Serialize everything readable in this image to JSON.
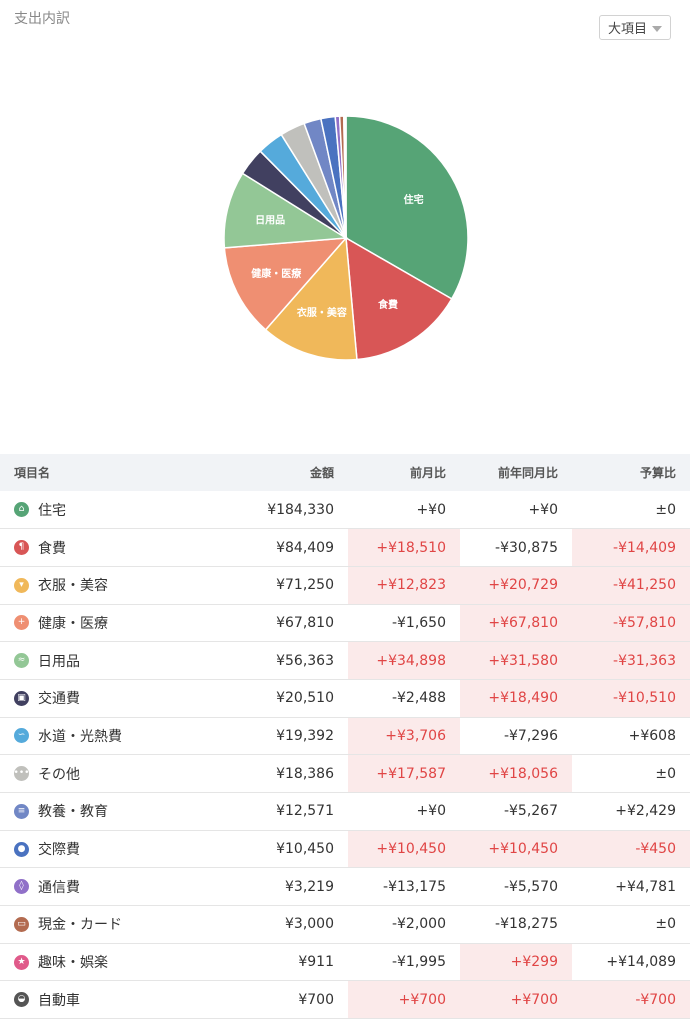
{
  "header": {
    "title": "支出内訳",
    "dropdown_selected": "大項目"
  },
  "pie": {
    "labels_shown": [
      "住宅",
      "食費",
      "衣服・美容",
      "健康・医療",
      "日用品"
    ],
    "colors": [
      "#56a476",
      "#d85656",
      "#f0b85a",
      "#ef8f72",
      "#93c796",
      "#414060",
      "#55aadb",
      "#c0c0bc",
      "#7187c5",
      "#4a72c0",
      "#9070c8",
      "#b36b50",
      "#e05a8a",
      "#555555"
    ]
  },
  "table": {
    "headers": [
      "項目名",
      "金額",
      "前月比",
      "前年同月比",
      "予算比"
    ],
    "rows": [
      {
        "name": "住宅",
        "icon": "house-icon",
        "color": "#56a476",
        "amount": "¥184,330",
        "mom": "+¥0",
        "yoy": "+¥0",
        "budget": "±0",
        "mom_neg": false,
        "yoy_neg": false,
        "budget_neg": false
      },
      {
        "name": "食費",
        "icon": "fork-knife-icon",
        "color": "#d85656",
        "amount": "¥84,409",
        "mom": "+¥18,510",
        "yoy": "-¥30,875",
        "budget": "-¥14,409",
        "mom_neg": true,
        "yoy_neg": false,
        "budget_neg": true
      },
      {
        "name": "衣服・美容",
        "icon": "shirt-icon",
        "color": "#f0b85a",
        "amount": "¥71,250",
        "mom": "+¥12,823",
        "yoy": "+¥20,729",
        "budget": "-¥41,250",
        "mom_neg": true,
        "yoy_neg": true,
        "budget_neg": true
      },
      {
        "name": "健康・医療",
        "icon": "medical-cross-icon",
        "color": "#ef8f72",
        "amount": "¥67,810",
        "mom": "-¥1,650",
        "yoy": "+¥67,810",
        "budget": "-¥57,810",
        "mom_neg": false,
        "yoy_neg": true,
        "budget_neg": true
      },
      {
        "name": "日用品",
        "icon": "pill-icon",
        "color": "#93c796",
        "amount": "¥56,363",
        "mom": "+¥34,898",
        "yoy": "+¥31,580",
        "budget": "-¥31,363",
        "mom_neg": true,
        "yoy_neg": true,
        "budget_neg": true
      },
      {
        "name": "交通費",
        "icon": "train-icon",
        "color": "#414060",
        "amount": "¥20,510",
        "mom": "-¥2,488",
        "yoy": "+¥18,490",
        "budget": "-¥10,510",
        "mom_neg": false,
        "yoy_neg": true,
        "budget_neg": true
      },
      {
        "name": "水道・光熱費",
        "icon": "faucet-icon",
        "color": "#55aadb",
        "amount": "¥19,392",
        "mom": "+¥3,706",
        "yoy": "-¥7,296",
        "budget": "+¥608",
        "mom_neg": true,
        "yoy_neg": false,
        "budget_neg": false
      },
      {
        "name": "その他",
        "icon": "dots-icon",
        "color": "#c0c0bc",
        "amount": "¥18,386",
        "mom": "+¥17,587",
        "yoy": "+¥18,056",
        "budget": "±0",
        "mom_neg": true,
        "yoy_neg": true,
        "budget_neg": false
      },
      {
        "name": "教養・教育",
        "icon": "book-icon",
        "color": "#7187c5",
        "amount": "¥12,571",
        "mom": "+¥0",
        "yoy": "-¥5,267",
        "budget": "+¥2,429",
        "mom_neg": false,
        "yoy_neg": false,
        "budget_neg": false
      },
      {
        "name": "交際費",
        "icon": "people-icon",
        "color": "#4a72c0",
        "amount": "¥10,450",
        "mom": "+¥10,450",
        "yoy": "+¥10,450",
        "budget": "-¥450",
        "mom_neg": true,
        "yoy_neg": true,
        "budget_neg": true
      },
      {
        "name": "通信費",
        "icon": "signal-icon",
        "color": "#9070c8",
        "amount": "¥3,219",
        "mom": "-¥13,175",
        "yoy": "-¥5,570",
        "budget": "+¥4,781",
        "mom_neg": false,
        "yoy_neg": false,
        "budget_neg": false
      },
      {
        "name": "現金・カード",
        "icon": "card-icon",
        "color": "#b36b50",
        "amount": "¥3,000",
        "mom": "-¥2,000",
        "yoy": "-¥18,275",
        "budget": "±0",
        "mom_neg": false,
        "yoy_neg": false,
        "budget_neg": false
      },
      {
        "name": "趣味・娯楽",
        "icon": "star-icon",
        "color": "#e05a8a",
        "amount": "¥911",
        "mom": "-¥1,995",
        "yoy": "+¥299",
        "budget": "+¥14,089",
        "mom_neg": false,
        "yoy_neg": true,
        "budget_neg": false
      },
      {
        "name": "自動車",
        "icon": "car-icon",
        "color": "#555555",
        "amount": "¥700",
        "mom": "+¥700",
        "yoy": "+¥700",
        "budget": "-¥700",
        "mom_neg": true,
        "yoy_neg": true,
        "budget_neg": true
      }
    ]
  }
}
